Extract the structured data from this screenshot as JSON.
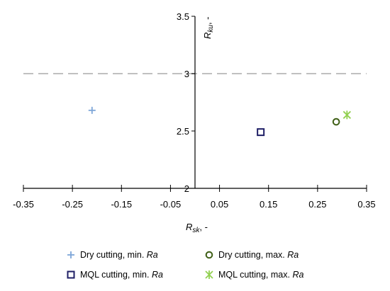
{
  "chart_data": {
    "type": "scatter",
    "xlabel": {
      "main": "R",
      "sub": "sk",
      "suffix": ", -"
    },
    "ylabel": {
      "main": "R",
      "sub": "ku",
      "suffix": ", -"
    },
    "xlim": [
      -0.35,
      0.35
    ],
    "ylim": [
      2,
      3.5
    ],
    "x_ticks": [
      -0.35,
      -0.25,
      -0.15,
      -0.05,
      0.05,
      0.15,
      0.25,
      0.35
    ],
    "x_tick_labels": [
      "-0.35",
      "-0.25",
      "-0.15",
      "-0.05",
      "0.05",
      "0.15",
      "0.25",
      "0.35"
    ],
    "y_ticks": [
      2,
      2.5,
      3,
      3.5
    ],
    "y_tick_labels": [
      "2",
      "2.5",
      "3",
      "3.5"
    ],
    "reference_line": {
      "y": 3,
      "style": "dashed",
      "color": "#c0c0c0"
    },
    "grid": false,
    "legend_position": "bottom",
    "series": [
      {
        "name": "Dry cutting, min. ",
        "name_italic": "Ra",
        "marker": "plus",
        "color": "#7ea6d8",
        "x": [
          -0.21
        ],
        "y": [
          2.68
        ]
      },
      {
        "name": "Dry cutting, max. ",
        "name_italic": "Ra",
        "marker": "circle",
        "color": "#3f5f16",
        "x": [
          0.288
        ],
        "y": [
          2.58
        ]
      },
      {
        "name": "MQL cutting, min. ",
        "name_italic": "Ra",
        "marker": "square",
        "color": "#1f1f66",
        "x": [
          0.134
        ],
        "y": [
          2.49
        ]
      },
      {
        "name": "MQL cutting, max. ",
        "name_italic": "Ra",
        "marker": "asterisk",
        "color": "#92d050",
        "x": [
          0.31
        ],
        "y": [
          2.64
        ]
      }
    ]
  }
}
